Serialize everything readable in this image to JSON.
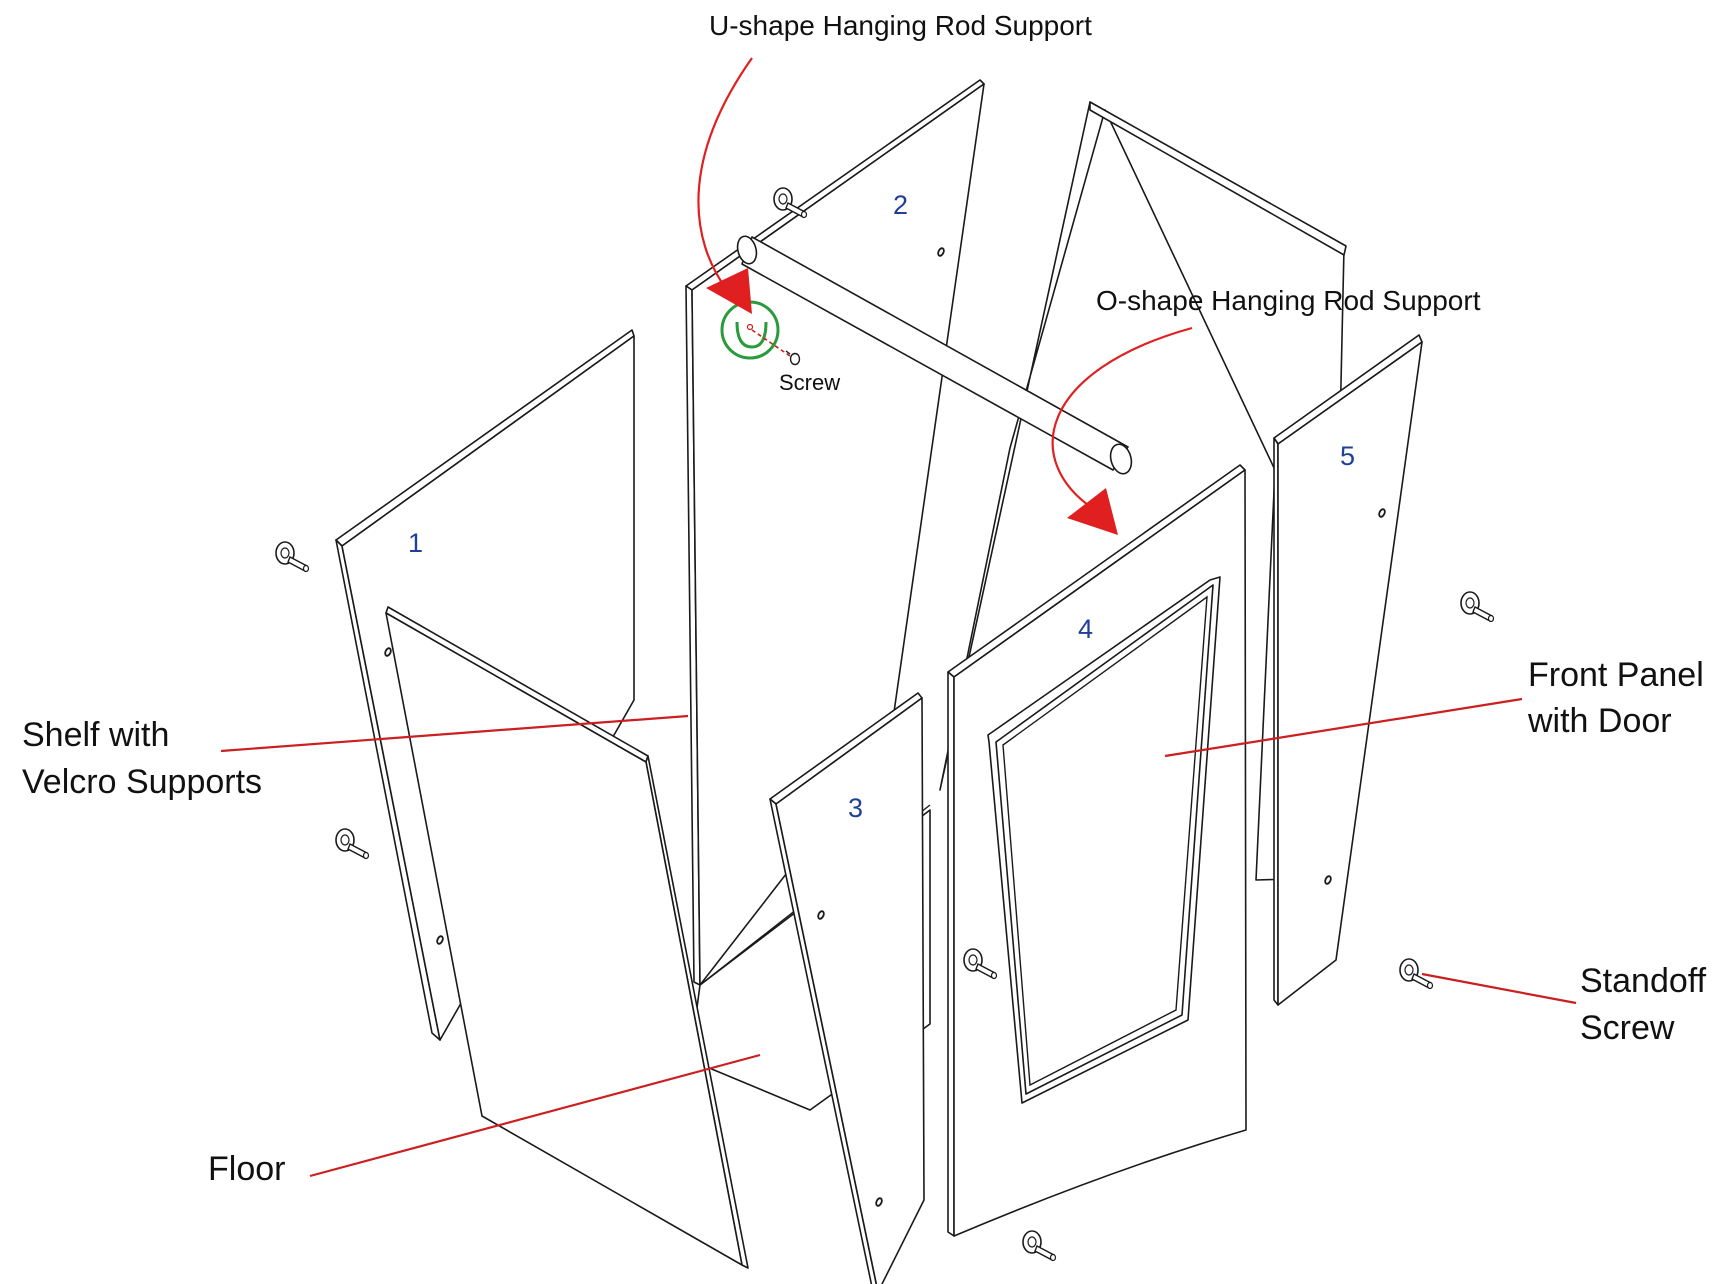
{
  "colors": {
    "leader": "#cc1f1f",
    "arrow": "#e02020",
    "highlight": "#2b9a3a",
    "panel_number": "#1f3f99",
    "line": "#1a1a1a"
  },
  "labels": {
    "u_shape_support": "U-shape Hanging Rod Support",
    "o_shape_support": "O-shape Hanging Rod Support",
    "screw": "Screw",
    "shelf_line1": "Shelf with",
    "shelf_line2": "Velcro Supports",
    "front_panel_line1": "Front Panel",
    "front_panel_line2": "with Door",
    "standoff_line1": "Standoff",
    "standoff_line2": "Screw",
    "floor": "Floor"
  },
  "panel_numbers": {
    "p1": "1",
    "p2": "2",
    "p3": "3",
    "p4": "4",
    "p5": "5"
  },
  "icons": {
    "standoff": "standoff-screw-icon",
    "screw": "small-screw-icon",
    "support_highlight": "u-shape-support-icon"
  }
}
